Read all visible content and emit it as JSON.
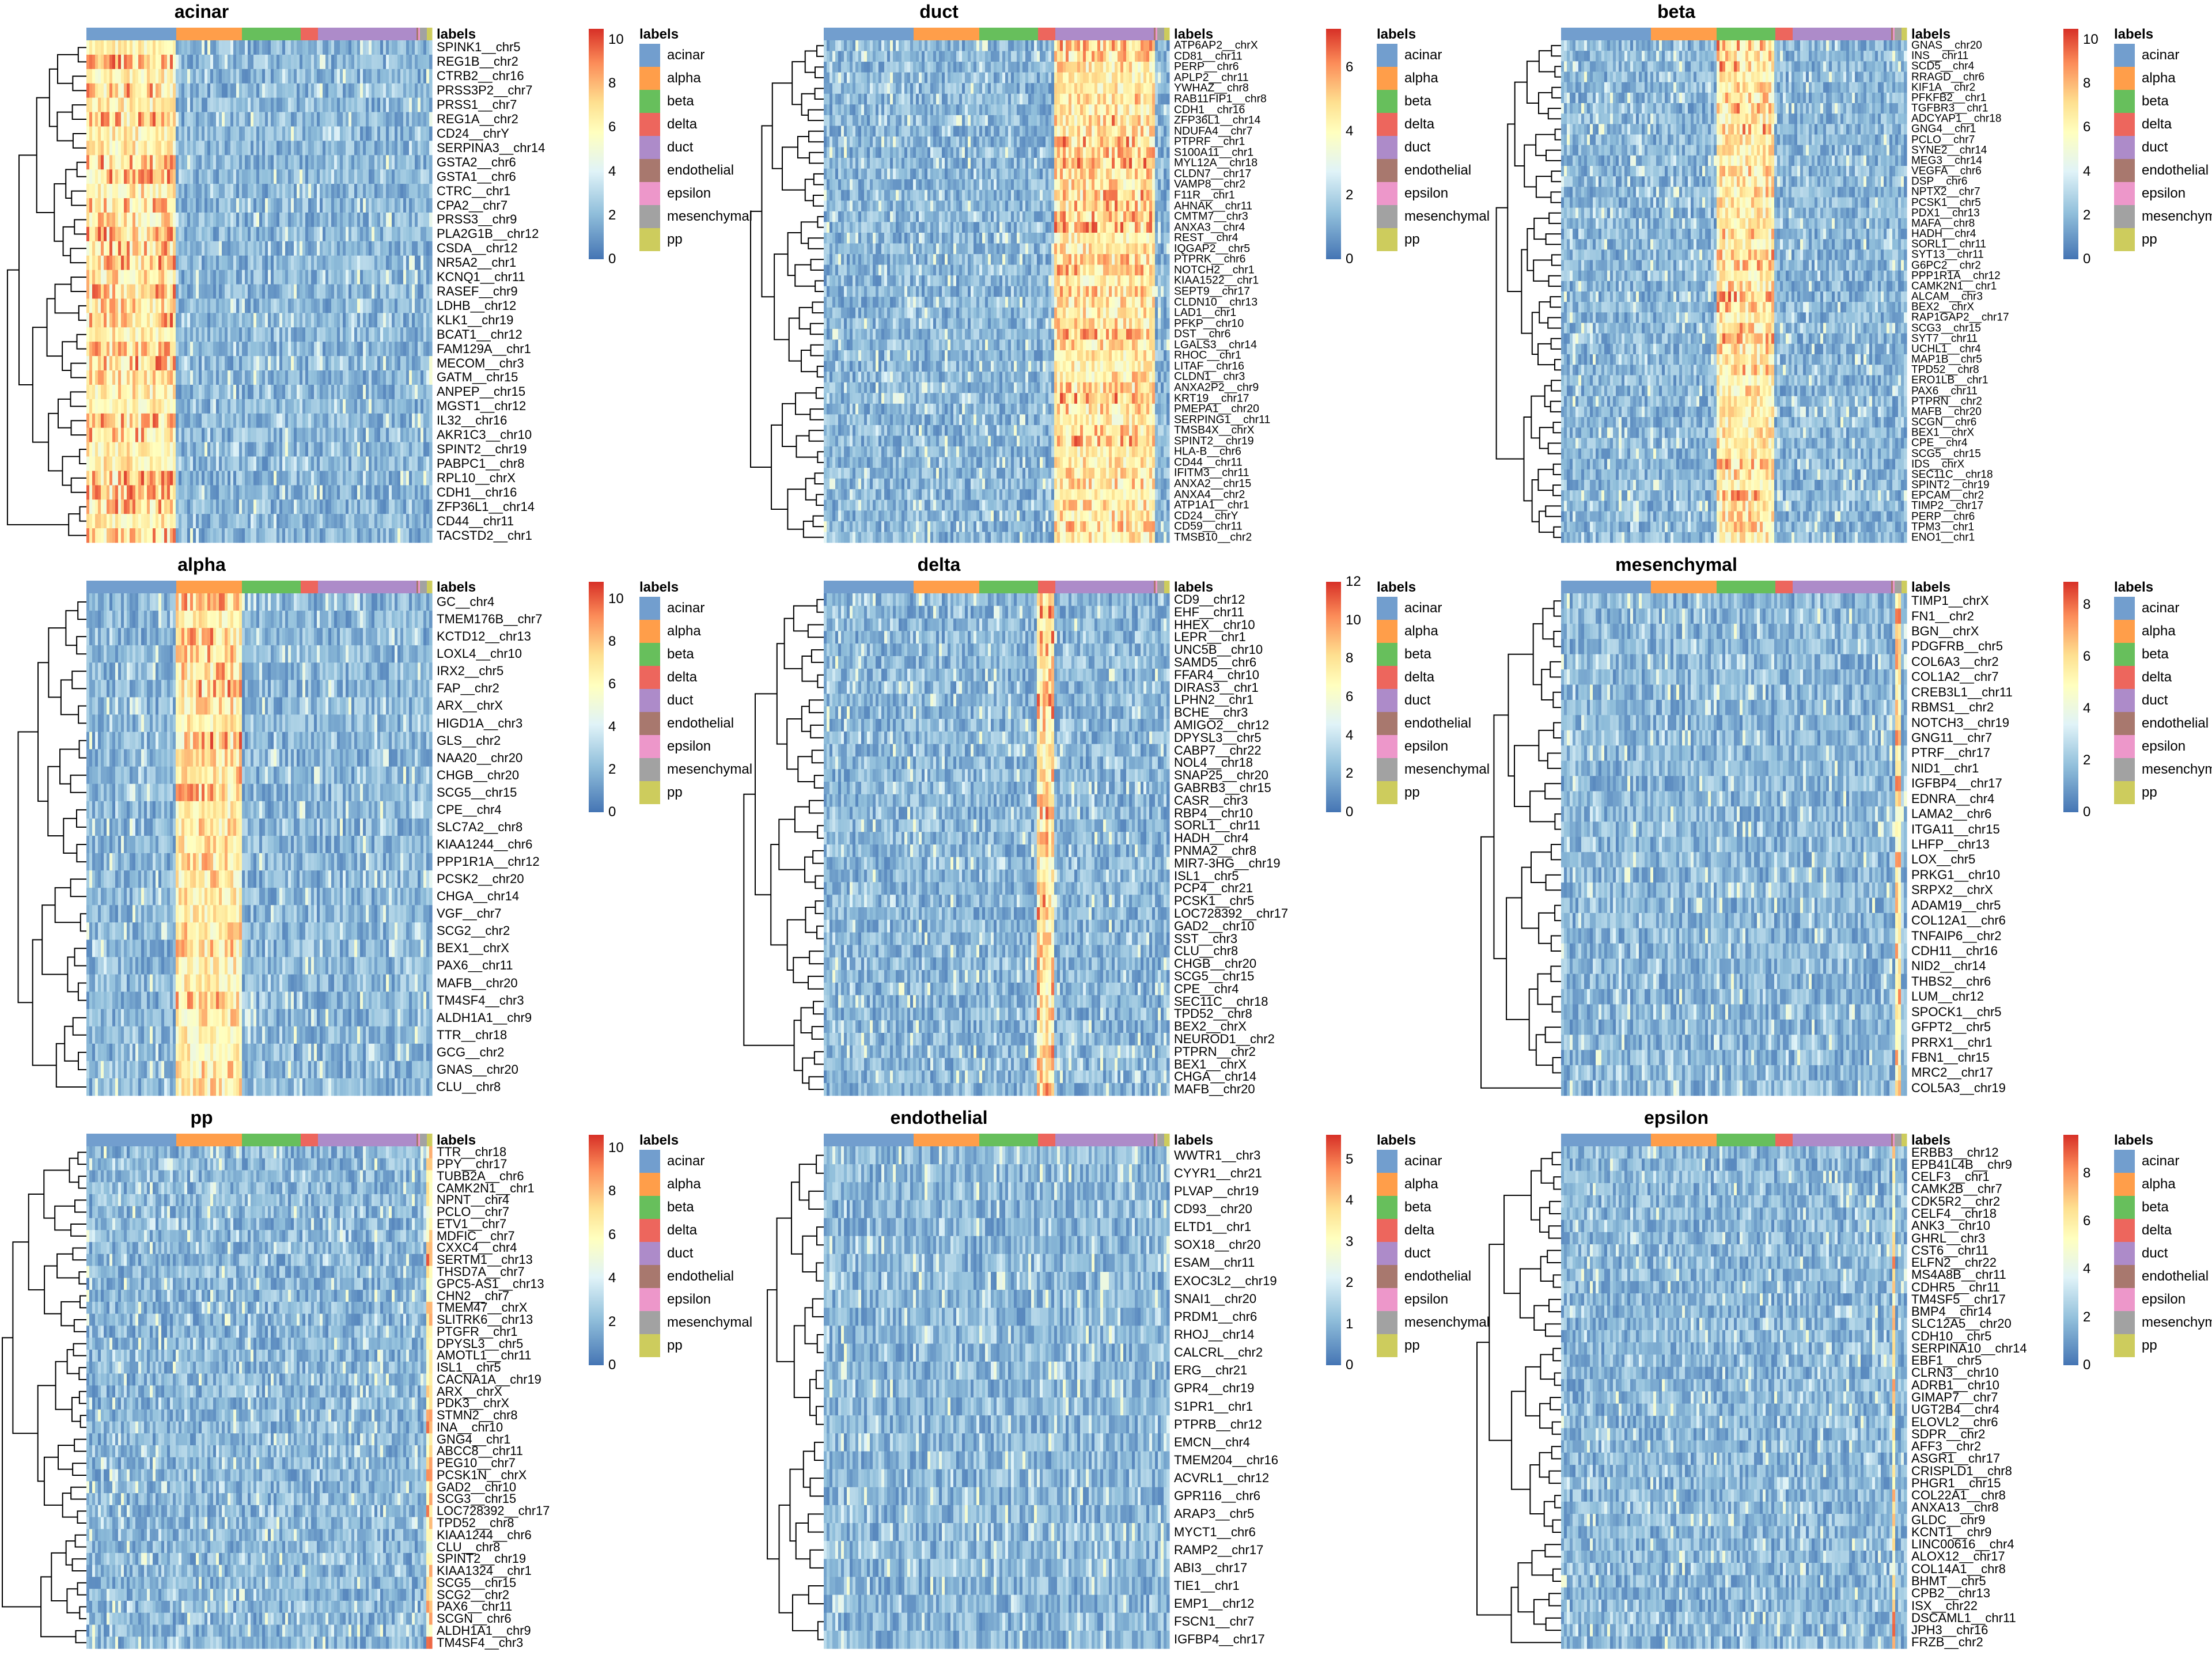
{
  "figure": {
    "layout": "3x3 grid of heatmaps",
    "annotation_title": "labels",
    "cell_types": [
      "acinar",
      "alpha",
      "beta",
      "delta",
      "duct",
      "endothelial",
      "epsilon",
      "mesenchymal",
      "pp"
    ],
    "cell_type_colors": {
      "acinar": "#729ece",
      "alpha": "#ff9e4a",
      "beta": "#67bf5c",
      "delta": "#ed665d",
      "duct": "#ad8bc9",
      "endothelial": "#a8786e",
      "epsilon": "#ed97ca",
      "mesenchymal": "#a2a2a2",
      "pp": "#cdcc5d"
    },
    "cell_type_fractions": [
      0.26,
      0.19,
      0.17,
      0.05,
      0.285,
      0.005,
      0.005,
      0.02,
      0.015
    ],
    "colorscale": [
      "#4575b4",
      "#91bfdb",
      "#e0f3f8",
      "#ffffbf",
      "#fee090",
      "#fc8d59",
      "#d73027"
    ]
  },
  "chart_data": [
    {
      "type": "heatmap",
      "title": "acinar",
      "colorbar_max": 10.5,
      "colorbar_ticks": [
        "0",
        "2",
        "4",
        "6",
        "8",
        "10"
      ],
      "genes": [
        "SPINK1__chr5",
        "REG1B__chr2",
        "CTRB2__chr16",
        "PRSS3P2__chr7",
        "PRSS1__chr7",
        "REG1A__chr2",
        "CD24__chrY",
        "SERPINA3__chr14",
        "GSTA2__chr6",
        "GSTA1__chr6",
        "CTRC__chr1",
        "CPA2__chr7",
        "PRSS3__chr9",
        "PLA2G1B__chr12",
        "CSDA__chr12",
        "NR5A2__chr1",
        "KCNQ1__chr11",
        "RASEF__chr9",
        "LDHB__chr12",
        "KLK1__chr19",
        "BCAT1__chr12",
        "FAM129A__chr1",
        "MECOM__chr3",
        "GATM__chr15",
        "ANPEP__chr15",
        "MGST1__chr12",
        "IL32__chr16",
        "AKR1C3__chr10",
        "SPINT2__chr19",
        "PABPC1__chr8",
        "RPL10__chrX",
        "CDH1__chr16",
        "ZFP36L1__chr14",
        "CD44__chr11",
        "TACSTD2__chr1"
      ],
      "high_group": "acinar"
    },
    {
      "type": "heatmap",
      "title": "duct",
      "colorbar_max": 7.2,
      "colorbar_ticks": [
        "0",
        "2",
        "4",
        "6"
      ],
      "genes": [
        "ATP6AP2__chrX",
        "CD81__chr11",
        "PERP__chr6",
        "APLP2__chr11",
        "YWHAZ__chr8",
        "RAB11FIP1__chr8",
        "CDH1__chr16",
        "ZFP36L1__chr14",
        "NDUFA4__chr7",
        "PTPRF__chr1",
        "S100A11__chr1",
        "MYL12A__chr18",
        "CLDN7__chr17",
        "VAMP8__chr2",
        "F11R__chr1",
        "AHNAK__chr11",
        "CMTM7__chr3",
        "ANXA3__chr4",
        "REST__chr4",
        "IQGAP2__chr5",
        "PTPRK__chr6",
        "NOTCH2__chr1",
        "KIAA1522__chr1",
        "SEPT9__chr17",
        "CLDN10__chr13",
        "LAD1__chr1",
        "PFKP__chr10",
        "DST__chr6",
        "LGALS3__chr14",
        "RHOC__chr1",
        "LITAF__chr16",
        "CLDN1__chr3",
        "ANXA2P2__chr9",
        "KRT19__chr17",
        "PMEPA1__chr20",
        "SERPING1__chr11",
        "TMSB4X__chrX",
        "SPINT2__chr19",
        "HLA-B__chr6",
        "CD44__chr11",
        "IFITM3__chr11",
        "ANXA2__chr15",
        "ANXA4__chr2",
        "ATP1A1__chr1",
        "CD24__chrY",
        "CD59__chr11",
        "TMSB10__chr2"
      ],
      "high_group": "duct"
    },
    {
      "type": "heatmap",
      "title": "beta",
      "colorbar_max": 10.5,
      "colorbar_ticks": [
        "0",
        "2",
        "4",
        "6",
        "8",
        "10"
      ],
      "genes": [
        "GNAS__chr20",
        "INS__chr11",
        "SCD5__chr4",
        "RRAGD__chr6",
        "KIF1A__chr2",
        "PFKFB2__chr1",
        "TGFBR3__chr1",
        "ADCYAP1__chr18",
        "GNG4__chr1",
        "PCLO__chr7",
        "SYNE2__chr14",
        "MEG3__chr14",
        "VEGFA__chr6",
        "DSP__chr6",
        "NPTX2__chr7",
        "PCSK1__chr5",
        "PDX1__chr13",
        "MAFA__chr8",
        "HADH__chr4",
        "SORL1__chr11",
        "SYT13__chr11",
        "G6PC2__chr2",
        "PPP1R1A__chr12",
        "CAMK2N1__chr1",
        "ALCAM__chr3",
        "BEX2__chrX",
        "RAP1GAP2__chr17",
        "SCG3__chr15",
        "SYT7__chr11",
        "UCHL1__chr4",
        "MAP1B__chr5",
        "TPD52__chr8",
        "ERO1LB__chr1",
        "PAX6__chr11",
        "PTPRN__chr2",
        "MAFB__chr20",
        "SCGN__chr6",
        "BEX1__chrX",
        "CPE__chr4",
        "SCG5__chr15",
        "IDS__chrX",
        "SEC11C__chr18",
        "SPINT2__chr19",
        "EPCAM__chr2",
        "TIMP2__chr17",
        "PERP__chr6",
        "TPM3__chr1",
        "ENO1__chr1"
      ],
      "high_group": "beta"
    },
    {
      "type": "heatmap",
      "title": "alpha",
      "colorbar_max": 10.8,
      "colorbar_ticks": [
        "0",
        "2",
        "4",
        "6",
        "8",
        "10"
      ],
      "genes": [
        "GC__chr4",
        "TMEM176B__chr7",
        "KCTD12__chr13",
        "LOXL4__chr10",
        "IRX2__chr5",
        "FAP__chr2",
        "ARX__chrX",
        "HIGD1A__chr3",
        "GLS__chr2",
        "NAA20__chr20",
        "CHGB__chr20",
        "SCG5__chr15",
        "CPE__chr4",
        "SLC7A2__chr8",
        "KIAA1244__chr6",
        "PPP1R1A__chr12",
        "PCSK2__chr20",
        "CHGA__chr14",
        "VGF__chr7",
        "SCG2__chr2",
        "BEX1__chrX",
        "PAX6__chr11",
        "MAFB__chr20",
        "TM4SF4__chr3",
        "ALDH1A1__chr9",
        "TTR__chr18",
        "GCG__chr2",
        "GNAS__chr20",
        "CLU__chr8"
      ],
      "high_group": "alpha"
    },
    {
      "type": "heatmap",
      "title": "delta",
      "colorbar_max": 12,
      "colorbar_ticks": [
        "0",
        "2",
        "4",
        "6",
        "8",
        "10",
        "12"
      ],
      "genes": [
        "CD9__chr12",
        "EHF__chr11",
        "HHEX__chr10",
        "LEPR__chr1",
        "UNC5B__chr10",
        "SAMD5__chr6",
        "FFAR4__chr10",
        "DIRAS3__chr1",
        "LPHN2__chr1",
        "BCHE__chr3",
        "AMIGO2__chr12",
        "DPYSL3__chr5",
        "CABP7__chr22",
        "NOL4__chr18",
        "SNAP25__chr20",
        "GABRB3__chr15",
        "CASR__chr3",
        "RBP4__chr10",
        "SORL1__chr11",
        "HADH__chr4",
        "PNMA2__chr8",
        "MIR7-3HG__chr19",
        "ISL1__chr5",
        "PCP4__chr21",
        "PCSK1__chr5",
        "LOC728392__chr17",
        "GAD2__chr10",
        "SST__chr3",
        "CLU__chr8",
        "CHGB__chr20",
        "SCG5__chr15",
        "CPE__chr4",
        "SEC11C__chr18",
        "TPD52__chr8",
        "BEX2__chrX",
        "NEUROD1__chr2",
        "PTPRN__chr2",
        "BEX1__chrX",
        "CHGA__chr14",
        "MAFB__chr20"
      ],
      "high_group": "delta"
    },
    {
      "type": "heatmap",
      "title": "mesenchymal",
      "colorbar_max": 8.9,
      "colorbar_ticks": [
        "0",
        "2",
        "4",
        "6",
        "8"
      ],
      "genes": [
        "TIMP1__chrX",
        "FN1__chr2",
        "BGN__chrX",
        "PDGFRB__chr5",
        "COL6A3__chr2",
        "COL1A2__chr7",
        "CREB3L1__chr11",
        "RBMS1__chr2",
        "NOTCH3__chr19",
        "GNG11__chr7",
        "PTRF__chr17",
        "NID1__chr1",
        "IGFBP4__chr17",
        "EDNRA__chr4",
        "LAMA2__chr6",
        "ITGA11__chr15",
        "LHFP__chr13",
        "LOX__chr5",
        "PRKG1__chr10",
        "SRPX2__chrX",
        "ADAM19__chr5",
        "COL12A1__chr6",
        "TNFAIP6__chr2",
        "CDH11__chr16",
        "NID2__chr14",
        "THBS2__chr6",
        "LUM__chr12",
        "SPOCK1__chr5",
        "GFPT2__chr5",
        "PRRX1__chr1",
        "FBN1__chr15",
        "MRC2__chr17",
        "COL5A3__chr19"
      ],
      "high_group": "mesenchymal"
    },
    {
      "type": "heatmap",
      "title": "pp",
      "colorbar_max": 10.6,
      "colorbar_ticks": [
        "0",
        "2",
        "4",
        "6",
        "8",
        "10"
      ],
      "genes": [
        "TTR__chr18",
        "PPY__chr17",
        "TUBB2A__chr6",
        "CAMK2N1__chr1",
        "NPNT__chr4",
        "PCLO__chr7",
        "ETV1__chr7",
        "MDFIC__chr7",
        "CXXC4__chr4",
        "SERTM1__chr13",
        "THSD7A__chr7",
        "GPC5-AS1__chr13",
        "CHN2__chr7",
        "TMEM47__chrX",
        "SLITRK6__chr13",
        "PTGFR__chr1",
        "DPYSL3__chr5",
        "AMOTL1__chr11",
        "ISL1__chr5",
        "CACNA1A__chr19",
        "ARX__chrX",
        "PDK3__chrX",
        "STMN2__chr8",
        "INA__chr10",
        "GNG4__chr1",
        "ABCC8__chr11",
        "PEG10__chr7",
        "PCSK1N__chrX",
        "GAD2__chr10",
        "SCG3__chr15",
        "LOC728392__chr17",
        "TPD52__chr8",
        "KIAA1244__chr6",
        "CLU__chr8",
        "SPINT2__chr19",
        "KIAA1324__chr1",
        "SCG5__chr15",
        "SCG2__chr2",
        "PAX6__chr11",
        "SCGN__chr6",
        "ALDH1A1__chr9",
        "TM4SF4__chr3"
      ],
      "high_group": "pp"
    },
    {
      "type": "heatmap",
      "title": "endothelial",
      "colorbar_max": 5.6,
      "colorbar_ticks": [
        "0",
        "1",
        "2",
        "3",
        "4",
        "5"
      ],
      "genes": [
        "WWTR1__chr3",
        "CYYR1__chr21",
        "PLVAP__chr19",
        "CD93__chr20",
        "ELTD1__chr1",
        "SOX18__chr20",
        "ESAM__chr11",
        "EXOC3L2__chr19",
        "SNAI1__chr20",
        "PRDM1__chr6",
        "RHOJ__chr14",
        "CALCRL__chr2",
        "ERG__chr21",
        "GPR4__chr19",
        "S1PR1__chr1",
        "PTPRB__chr12",
        "EMCN__chr4",
        "TMEM204__chr16",
        "ACVRL1__chr12",
        "GPR116__chr6",
        "ARAP3__chr5",
        "MYCT1__chr6",
        "RAMP2__chr17",
        "ABI3__chr17",
        "TIE1__chr1",
        "EMP1__chr12",
        "FSCN1__chr7",
        "IGFBP4__chr17"
      ],
      "high_group": "endothelial"
    },
    {
      "type": "heatmap",
      "title": "epsilon",
      "colorbar_max": 9.6,
      "colorbar_ticks": [
        "0",
        "2",
        "4",
        "6",
        "8"
      ],
      "genes": [
        "ERBB3__chr12",
        "EPB41L4B__chr9",
        "CELF3__chr1",
        "CAMK2B__chr7",
        "CDK5R2__chr2",
        "CELF4__chr18",
        "ANK3__chr10",
        "GHRL__chr3",
        "CST6__chr11",
        "ELFN2__chr22",
        "MS4A8B__chr11",
        "CDHR5__chr11",
        "TM4SF5__chr17",
        "BMP4__chr14",
        "SLC12A5__chr20",
        "CDH10__chr5",
        "SERPINA10__chr14",
        "EBF1__chr5",
        "CLRN3__chr10",
        "ADRB1__chr10",
        "GIMAP7__chr7",
        "UGT2B4__chr4",
        "ELOVL2__chr6",
        "SDPR__chr2",
        "AFF3__chr2",
        "ASGR1__chr17",
        "CRISPLD1__chr8",
        "PHGR1__chr15",
        "COL22A1__chr8",
        "ANXA13__chr8",
        "GLDC__chr9",
        "KCNT1__chr9",
        "LINC00616__chr4",
        "ALOX12__chr17",
        "COL14A1__chr8",
        "BHMT__chr5",
        "CPB2__chr13",
        "ISX__chr22",
        "DSCAML1__chr11",
        "JPH3__chr16",
        "FRZB__chr2"
      ],
      "high_group": "epsilon"
    }
  ]
}
